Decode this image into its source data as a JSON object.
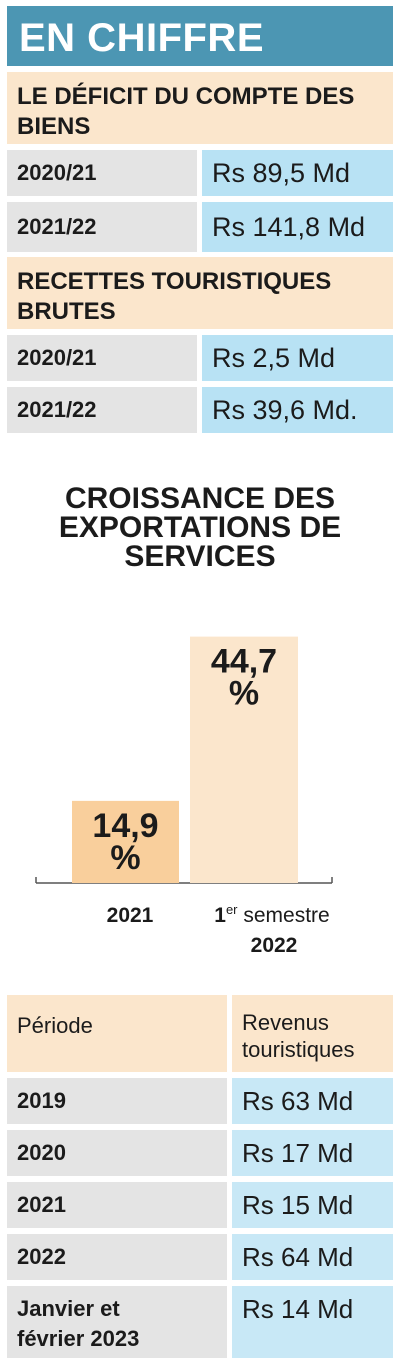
{
  "header": {
    "title": "EN CHIFFRE"
  },
  "deficit": {
    "heading": "LE DÉFICIT DU COMPTE DES BIENS",
    "rows": [
      {
        "period": "2020/21",
        "value": "Rs 89,5 Md"
      },
      {
        "period": "2021/22",
        "value": "Rs 141,8 Md"
      }
    ]
  },
  "tourism": {
    "heading": "RECETTES TOURISTIQUES BRUTES",
    "rows": [
      {
        "period": "2020/21",
        "value": "Rs 2,5 Md"
      },
      {
        "period": "2021/22",
        "value": "Rs 39,6 Md."
      }
    ]
  },
  "chart_data": {
    "type": "bar",
    "title": "CROISSANCE DES EXPORTATIONS DE SERVICES",
    "categories": [
      "2021",
      "1er semestre 2022"
    ],
    "category_parts": [
      {
        "line1": "2021"
      },
      {
        "prefix": "1",
        "sup": "er",
        "rest": "semestre",
        "line2": "2022"
      }
    ],
    "values": [
      14.9,
      44.7
    ],
    "value_labels": [
      [
        "14,9",
        "%"
      ],
      [
        "44,7",
        "%"
      ]
    ],
    "unit": "%",
    "ylim": [
      0,
      50
    ],
    "grid": false,
    "colors": [
      "#f9cf9c",
      "#fbe6cc"
    ]
  },
  "revenue_table": {
    "headers": [
      "Période",
      "Revenus touristiques"
    ],
    "header_lines": [
      [
        "Période"
      ],
      [
        "Revenus",
        "touristiques"
      ]
    ],
    "rows": [
      {
        "period": "2019",
        "value": "Rs 63 Md"
      },
      {
        "period": "2020",
        "value": "Rs 17 Md"
      },
      {
        "period": "2021",
        "value": "Rs 15 Md"
      },
      {
        "period": "2022",
        "value": "Rs 64 Md"
      },
      {
        "period": "Janvier et février 2023",
        "period_lines": [
          "Janvier et",
          "février 2023"
        ],
        "value": "Rs 14 Md"
      }
    ]
  }
}
